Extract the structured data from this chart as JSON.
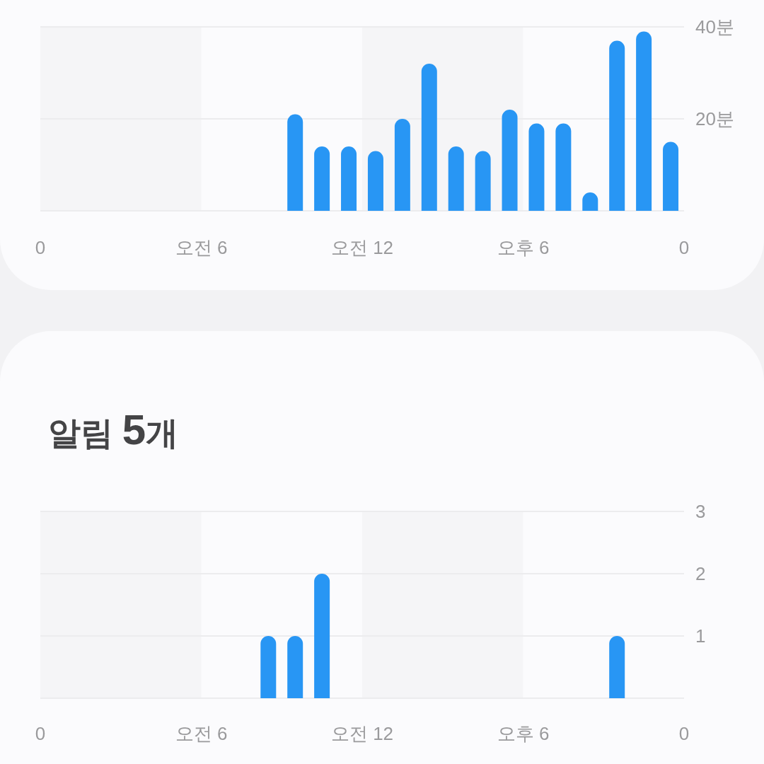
{
  "chart_data": [
    {
      "type": "bar",
      "categories": [
        "0",
        null,
        null,
        null,
        null,
        null,
        null,
        null,
        null,
        null,
        null,
        null,
        "오전 6",
        null,
        null,
        null,
        null,
        null,
        null,
        null,
        null,
        null,
        null,
        null,
        "오전 12",
        null,
        null,
        null,
        null,
        null,
        null,
        null,
        null,
        null,
        null,
        null,
        "오후 6",
        null,
        null,
        null,
        null,
        null,
        null,
        null,
        null,
        null,
        null,
        null,
        "0"
      ],
      "values": [
        null,
        null,
        null,
        null,
        null,
        null,
        null,
        null,
        null,
        null,
        null,
        null,
        null,
        null,
        null,
        null,
        null,
        null,
        null,
        21,
        null,
        14,
        null,
        14,
        null,
        13,
        null,
        20,
        null,
        32,
        null,
        14,
        null,
        13,
        null,
        22,
        null,
        19,
        null,
        19,
        null,
        4,
        null,
        37,
        null,
        39,
        null,
        15,
        null
      ],
      "color": "#2896f4",
      "ylim": [
        0,
        40
      ],
      "yticks": [
        {
          "value": 0,
          "label": null
        },
        {
          "value": 20,
          "label": "20분"
        },
        {
          "value": 40,
          "label": "40분"
        }
      ],
      "grid": "y",
      "bands": [
        {
          "axis": "x",
          "from": "0",
          "to": "오전 6",
          "color": "#f5f5f7"
        },
        {
          "axis": "x",
          "from": "오전 12",
          "to": "오후 6",
          "color": "#f5f5f7"
        }
      ]
    },
    {
      "type": "bar",
      "title": "알림 5개",
      "categories": [
        "0",
        null,
        null,
        null,
        null,
        null,
        null,
        null,
        null,
        null,
        null,
        null,
        "오전 6",
        null,
        null,
        null,
        null,
        null,
        null,
        null,
        null,
        null,
        null,
        null,
        "오전 12",
        null,
        null,
        null,
        null,
        null,
        null,
        null,
        null,
        null,
        null,
        null,
        "오후 6",
        null,
        null,
        null,
        null,
        null,
        null,
        null,
        null,
        null,
        null,
        null,
        "0"
      ],
      "values": [
        null,
        null,
        null,
        null,
        null,
        null,
        null,
        null,
        null,
        null,
        null,
        null,
        null,
        null,
        null,
        null,
        null,
        1,
        null,
        1,
        null,
        2,
        null,
        null,
        null,
        null,
        null,
        null,
        null,
        null,
        null,
        null,
        null,
        null,
        null,
        null,
        null,
        null,
        null,
        null,
        null,
        null,
        null,
        1,
        null,
        null,
        null,
        null,
        null
      ],
      "color": "#2896f4",
      "ylim": [
        0,
        3
      ],
      "yticks": [
        {
          "value": 0,
          "label": null
        },
        1,
        2,
        3
      ],
      "grid": "y",
      "bands": [
        {
          "axis": "x",
          "from": "0",
          "to": "오전 6",
          "color": "#f5f5f7"
        },
        {
          "axis": "x",
          "from": "오전 12",
          "to": "오후 6",
          "color": "#f5f5f7"
        }
      ]
    }
  ]
}
